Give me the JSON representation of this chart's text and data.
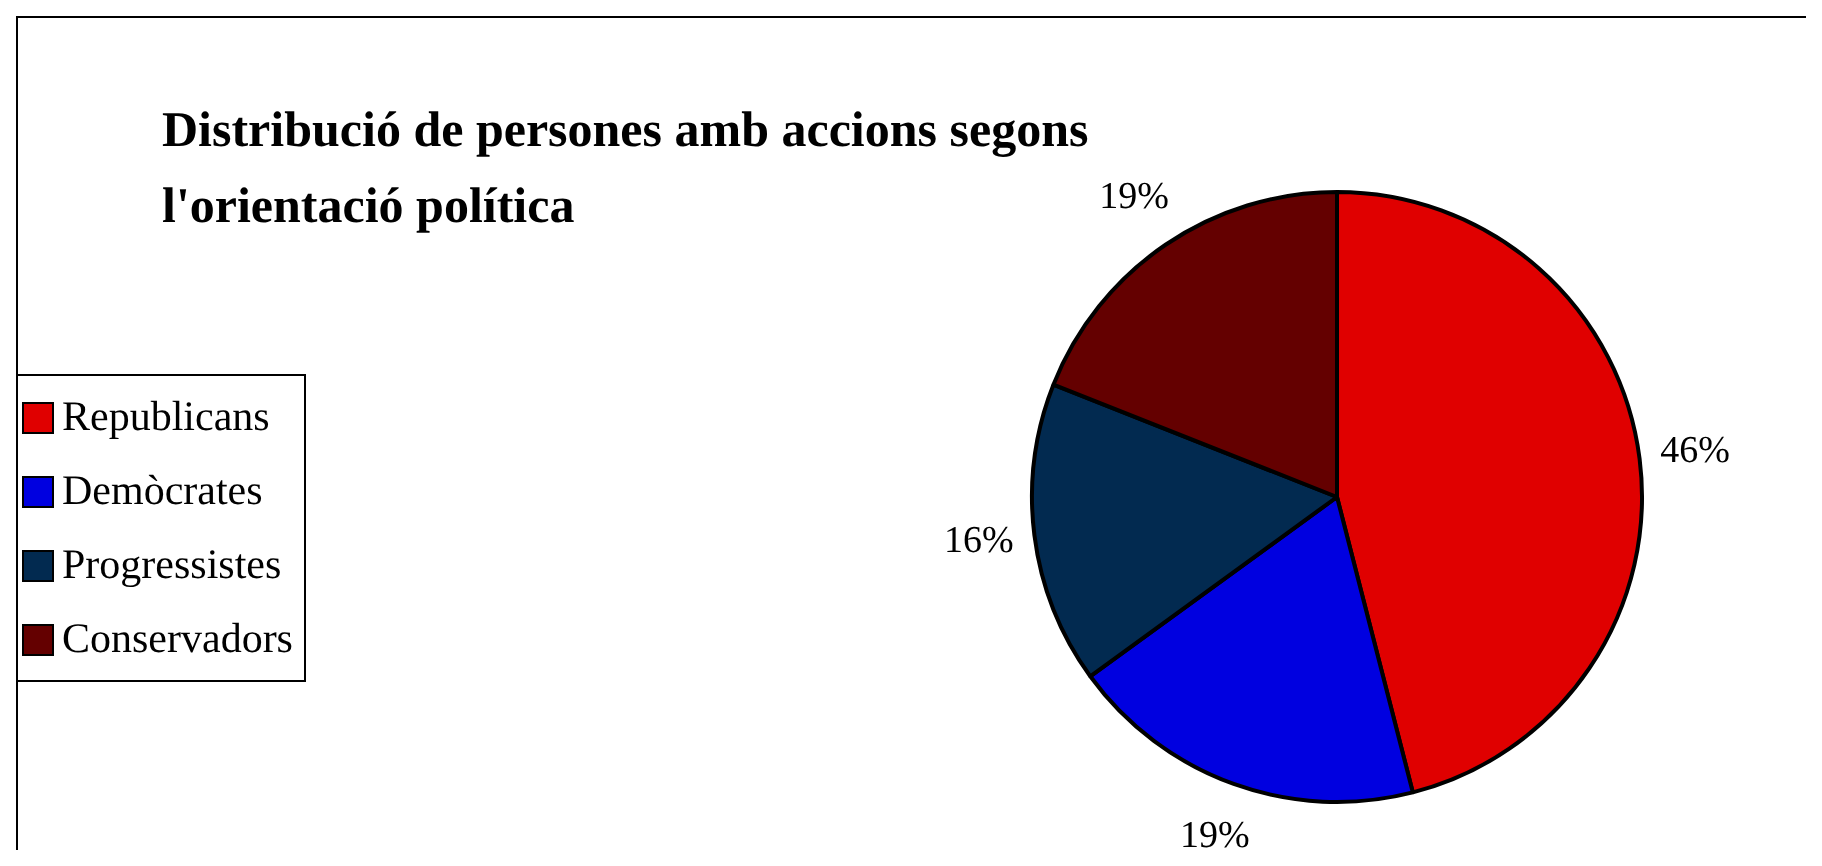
{
  "chart_data": {
    "type": "pie",
    "title": "Distribució de persones amb accions segons l'orientació política",
    "categories": [
      "Republicans",
      "Demòcrates",
      "Progressistes",
      "Conservadors"
    ],
    "values": [
      46,
      19,
      16,
      19
    ],
    "colors": [
      "#e00000",
      "#0000e0",
      "#022a50",
      "#640000"
    ],
    "value_labels": [
      "46%",
      "19%",
      "16%",
      "19%"
    ],
    "legend": "left"
  }
}
